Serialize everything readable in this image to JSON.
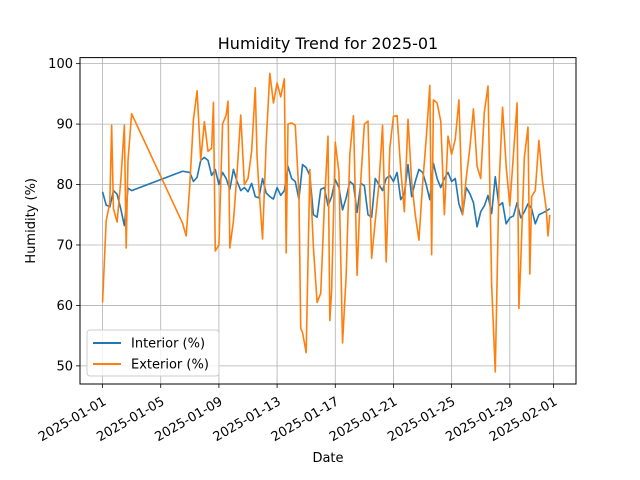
{
  "chart_data": {
    "type": "line",
    "title": "Humidity Trend for 2025-01",
    "xlabel": "Date",
    "ylabel": "Humidity (%)",
    "xlim": [
      "2025-01-01",
      "2025-02-01"
    ],
    "ylim": [
      47,
      101
    ],
    "x_ticks": [
      "2025-01-01",
      "2025-01-05",
      "2025-01-09",
      "2025-01-13",
      "2025-01-17",
      "2025-01-21",
      "2025-01-25",
      "2025-01-29",
      "2025-02-01"
    ],
    "y_ticks": [
      50,
      60,
      70,
      80,
      90,
      100
    ],
    "grid": true,
    "legend_position": "lower-left",
    "series": [
      {
        "name": "Interior (%)",
        "color": "#1f77b4",
        "points": [
          [
            "2025-01-01T00:00",
            78.8
          ],
          [
            "2025-01-01T06:00",
            76.6
          ],
          [
            "2025-01-01T12:00",
            76.3
          ],
          [
            "2025-01-01T18:00",
            79.0
          ],
          [
            "2025-01-02T00:00",
            78.4
          ],
          [
            "2025-01-02T06:00",
            76.0
          ],
          [
            "2025-01-02T12:00",
            73.2
          ],
          [
            "2025-01-02T18:00",
            79.4
          ],
          [
            "2025-01-03T00:00",
            79.0
          ],
          [
            "2025-01-06T12:00",
            82.2
          ],
          [
            "2025-01-07T00:00",
            82.0
          ],
          [
            "2025-01-07T06:00",
            80.5
          ],
          [
            "2025-01-07T12:00",
            81.2
          ],
          [
            "2025-01-07T18:00",
            84.0
          ],
          [
            "2025-01-08T00:00",
            84.5
          ],
          [
            "2025-01-08T06:00",
            84.0
          ],
          [
            "2025-01-08T12:00",
            81.5
          ],
          [
            "2025-01-08T18:00",
            82.5
          ],
          [
            "2025-01-09T00:00",
            80.0
          ],
          [
            "2025-01-09T06:00",
            82.0
          ],
          [
            "2025-01-09T12:00",
            81.0
          ],
          [
            "2025-01-09T18:00",
            79.2
          ],
          [
            "2025-01-10T00:00",
            82.5
          ],
          [
            "2025-01-10T06:00",
            80.5
          ],
          [
            "2025-01-10T12:00",
            79.0
          ],
          [
            "2025-01-10T18:00",
            79.5
          ],
          [
            "2025-01-11T00:00",
            78.8
          ],
          [
            "2025-01-11T06:00",
            80.2
          ],
          [
            "2025-01-11T12:00",
            78.0
          ],
          [
            "2025-01-11T18:00",
            77.8
          ],
          [
            "2025-01-12T00:00",
            81.0
          ],
          [
            "2025-01-12T06:00",
            78.6
          ],
          [
            "2025-01-12T12:00",
            78.0
          ],
          [
            "2025-01-12T18:00",
            77.6
          ],
          [
            "2025-01-13T00:00",
            79.5
          ],
          [
            "2025-01-13T06:00",
            78.2
          ],
          [
            "2025-01-13T12:00",
            79.0
          ],
          [
            "2025-01-13T18:00",
            83.0
          ],
          [
            "2025-01-14T00:00",
            81.0
          ],
          [
            "2025-01-14T06:00",
            80.5
          ],
          [
            "2025-01-14T12:00",
            77.6
          ],
          [
            "2025-01-14T18:00",
            83.3
          ],
          [
            "2025-01-15T00:00",
            82.8
          ],
          [
            "2025-01-15T06:00",
            81.5
          ],
          [
            "2025-01-15T12:00",
            75.0
          ],
          [
            "2025-01-15T18:00",
            74.6
          ],
          [
            "2025-01-16T00:00",
            79.2
          ],
          [
            "2025-01-16T06:00",
            79.5
          ],
          [
            "2025-01-16T12:00",
            76.5
          ],
          [
            "2025-01-16T18:00",
            78.0
          ],
          [
            "2025-01-17T00:00",
            80.8
          ],
          [
            "2025-01-17T06:00",
            79.5
          ],
          [
            "2025-01-17T12:00",
            75.8
          ],
          [
            "2025-01-17T18:00",
            77.8
          ],
          [
            "2025-01-18T00:00",
            80.5
          ],
          [
            "2025-01-18T06:00",
            80.0
          ],
          [
            "2025-01-18T12:00",
            75.4
          ],
          [
            "2025-01-18T18:00",
            80.2
          ],
          [
            "2025-01-19T00:00",
            79.8
          ],
          [
            "2025-01-19T06:00",
            75.0
          ],
          [
            "2025-01-19T12:00",
            74.6
          ],
          [
            "2025-01-19T18:00",
            81.0
          ],
          [
            "2025-01-20T00:00",
            80.0
          ],
          [
            "2025-01-20T06:00",
            79.0
          ],
          [
            "2025-01-20T12:00",
            81.0
          ],
          [
            "2025-01-20T18:00",
            81.5
          ],
          [
            "2025-01-21T00:00",
            80.5
          ],
          [
            "2025-01-21T06:00",
            82.0
          ],
          [
            "2025-01-21T12:00",
            77.5
          ],
          [
            "2025-01-21T18:00",
            78.5
          ],
          [
            "2025-01-22T00:00",
            83.3
          ],
          [
            "2025-01-22T06:00",
            78.0
          ],
          [
            "2025-01-22T12:00",
            80.5
          ],
          [
            "2025-01-22T18:00",
            82.5
          ],
          [
            "2025-01-23T00:00",
            82.0
          ],
          [
            "2025-01-23T06:00",
            80.0
          ],
          [
            "2025-01-23T12:00",
            77.5
          ],
          [
            "2025-01-23T18:00",
            83.5
          ],
          [
            "2025-01-24T00:00",
            81.0
          ],
          [
            "2025-01-24T06:00",
            79.5
          ],
          [
            "2025-01-24T12:00",
            81.0
          ],
          [
            "2025-01-24T18:00",
            82.0
          ],
          [
            "2025-01-25T00:00",
            80.5
          ],
          [
            "2025-01-25T06:00",
            81.0
          ],
          [
            "2025-01-25T12:00",
            76.8
          ],
          [
            "2025-01-25T18:00",
            75.0
          ],
          [
            "2025-01-26T00:00",
            79.5
          ],
          [
            "2025-01-26T06:00",
            78.5
          ],
          [
            "2025-01-26T12:00",
            77.0
          ],
          [
            "2025-01-26T18:00",
            73.0
          ],
          [
            "2025-01-27T00:00",
            75.5
          ],
          [
            "2025-01-27T06:00",
            76.5
          ],
          [
            "2025-01-27T12:00",
            78.2
          ],
          [
            "2025-01-27T18:00",
            75.2
          ],
          [
            "2025-01-28T00:00",
            81.3
          ],
          [
            "2025-01-28T06:00",
            76.5
          ],
          [
            "2025-01-28T12:00",
            77.0
          ],
          [
            "2025-01-28T18:00",
            73.5
          ],
          [
            "2025-01-29T00:00",
            74.5
          ],
          [
            "2025-01-29T06:00",
            74.8
          ],
          [
            "2025-01-29T12:00",
            77.0
          ],
          [
            "2025-01-29T18:00",
            74.5
          ],
          [
            "2025-01-30T00:00",
            75.5
          ],
          [
            "2025-01-30T06:00",
            76.8
          ],
          [
            "2025-01-30T12:00",
            76.0
          ],
          [
            "2025-01-30T18:00",
            73.5
          ],
          [
            "2025-01-31T00:00",
            75.0
          ],
          [
            "2025-01-31T06:00",
            75.3
          ],
          [
            "2025-01-31T12:00",
            75.6
          ],
          [
            "2025-01-31T18:00",
            76.0
          ]
        ]
      },
      {
        "name": "Exterior (%)",
        "color": "#ff7f0e",
        "points": [
          [
            "2025-01-01T00:00",
            60.5
          ],
          [
            "2025-01-01T06:00",
            74.0
          ],
          [
            "2025-01-01T12:00",
            77.0
          ],
          [
            "2025-01-01T15:00",
            89.8
          ],
          [
            "2025-01-01T18:00",
            76.0
          ],
          [
            "2025-01-02T00:00",
            73.8
          ],
          [
            "2025-01-02T06:00",
            80.5
          ],
          [
            "2025-01-02T12:00",
            89.8
          ],
          [
            "2025-01-02T15:00",
            69.5
          ],
          [
            "2025-01-02T18:00",
            84.0
          ],
          [
            "2025-01-03T00:00",
            91.7
          ],
          [
            "2025-01-06T12:00",
            73.6
          ],
          [
            "2025-01-06T18:00",
            71.5
          ],
          [
            "2025-01-07T00:00",
            80.0
          ],
          [
            "2025-01-07T06:00",
            90.8
          ],
          [
            "2025-01-07T12:00",
            95.5
          ],
          [
            "2025-01-07T18:00",
            84.0
          ],
          [
            "2025-01-08T00:00",
            90.4
          ],
          [
            "2025-01-08T06:00",
            85.5
          ],
          [
            "2025-01-08T12:00",
            86.0
          ],
          [
            "2025-01-08T15:00",
            93.6
          ],
          [
            "2025-01-08T18:00",
            69.0
          ],
          [
            "2025-01-09T00:00",
            70.0
          ],
          [
            "2025-01-09T06:00",
            90.0
          ],
          [
            "2025-01-09T12:00",
            91.5
          ],
          [
            "2025-01-09T15:00",
            93.8
          ],
          [
            "2025-01-09T18:00",
            69.5
          ],
          [
            "2025-01-10T00:00",
            74.0
          ],
          [
            "2025-01-10T06:00",
            82.0
          ],
          [
            "2025-01-10T12:00",
            91.5
          ],
          [
            "2025-01-10T18:00",
            80.0
          ],
          [
            "2025-01-11T00:00",
            81.0
          ],
          [
            "2025-01-11T06:00",
            85.5
          ],
          [
            "2025-01-11T12:00",
            96.0
          ],
          [
            "2025-01-11T15:00",
            84.5
          ],
          [
            "2025-01-11T18:00",
            79.5
          ],
          [
            "2025-01-12T00:00",
            71.0
          ],
          [
            "2025-01-12T06:00",
            87.0
          ],
          [
            "2025-01-12T12:00",
            98.4
          ],
          [
            "2025-01-12T18:00",
            93.5
          ],
          [
            "2025-01-13T00:00",
            96.8
          ],
          [
            "2025-01-13T06:00",
            94.5
          ],
          [
            "2025-01-13T12:00",
            97.5
          ],
          [
            "2025-01-13T15:00",
            68.7
          ],
          [
            "2025-01-13T18:00",
            90.0
          ],
          [
            "2025-01-14T00:00",
            90.2
          ],
          [
            "2025-01-14T06:00",
            89.8
          ],
          [
            "2025-01-14T12:00",
            78.5
          ],
          [
            "2025-01-14T15:00",
            56.2
          ],
          [
            "2025-01-14T18:00",
            55.5
          ],
          [
            "2025-01-15T00:00",
            52.2
          ],
          [
            "2025-01-15T06:00",
            82.5
          ],
          [
            "2025-01-15T12:00",
            69.5
          ],
          [
            "2025-01-15T18:00",
            60.5
          ],
          [
            "2025-01-16T00:00",
            62.0
          ],
          [
            "2025-01-16T06:00",
            76.5
          ],
          [
            "2025-01-16T12:00",
            88.0
          ],
          [
            "2025-01-16T15:00",
            57.5
          ],
          [
            "2025-01-16T18:00",
            62.5
          ],
          [
            "2025-01-17T00:00",
            87.0
          ],
          [
            "2025-01-17T06:00",
            82.0
          ],
          [
            "2025-01-17T12:00",
            53.8
          ],
          [
            "2025-01-17T18:00",
            65.0
          ],
          [
            "2025-01-18T00:00",
            85.0
          ],
          [
            "2025-01-18T06:00",
            91.4
          ],
          [
            "2025-01-18T12:00",
            65.0
          ],
          [
            "2025-01-18T18:00",
            80.5
          ],
          [
            "2025-01-19T00:00",
            90.0
          ],
          [
            "2025-01-19T06:00",
            90.5
          ],
          [
            "2025-01-19T12:00",
            67.8
          ],
          [
            "2025-01-19T18:00",
            74.0
          ],
          [
            "2025-01-20T00:00",
            80.0
          ],
          [
            "2025-01-20T06:00",
            89.8
          ],
          [
            "2025-01-20T12:00",
            67.2
          ],
          [
            "2025-01-20T18:00",
            86.0
          ],
          [
            "2025-01-21T00:00",
            91.3
          ],
          [
            "2025-01-21T06:00",
            91.4
          ],
          [
            "2025-01-21T12:00",
            82.5
          ],
          [
            "2025-01-21T18:00",
            75.5
          ],
          [
            "2025-01-22T00:00",
            90.8
          ],
          [
            "2025-01-22T06:00",
            80.5
          ],
          [
            "2025-01-22T12:00",
            75.0
          ],
          [
            "2025-01-22T18:00",
            70.8
          ],
          [
            "2025-01-23T00:00",
            80.0
          ],
          [
            "2025-01-23T06:00",
            87.5
          ],
          [
            "2025-01-23T12:00",
            96.4
          ],
          [
            "2025-01-23T15:00",
            68.4
          ],
          [
            "2025-01-23T18:00",
            94.0
          ],
          [
            "2025-01-24T00:00",
            93.5
          ],
          [
            "2025-01-24T06:00",
            90.5
          ],
          [
            "2025-01-24T12:00",
            75.0
          ],
          [
            "2025-01-24T18:00",
            88.0
          ],
          [
            "2025-01-25T00:00",
            85.0
          ],
          [
            "2025-01-25T06:00",
            87.5
          ],
          [
            "2025-01-25T12:00",
            94.0
          ],
          [
            "2025-01-25T18:00",
            75.0
          ],
          [
            "2025-01-26T00:00",
            81.0
          ],
          [
            "2025-01-26T06:00",
            86.0
          ],
          [
            "2025-01-26T12:00",
            92.5
          ],
          [
            "2025-01-26T18:00",
            83.0
          ],
          [
            "2025-01-27T00:00",
            81.0
          ],
          [
            "2025-01-27T06:00",
            92.0
          ],
          [
            "2025-01-27T12:00",
            96.3
          ],
          [
            "2025-01-27T18:00",
            63.5
          ],
          [
            "2025-01-28T00:00",
            49.0
          ],
          [
            "2025-01-28T06:00",
            79.5
          ],
          [
            "2025-01-28T12:00",
            92.8
          ],
          [
            "2025-01-28T18:00",
            83.0
          ],
          [
            "2025-01-29T00:00",
            76.5
          ],
          [
            "2025-01-29T06:00",
            85.0
          ],
          [
            "2025-01-29T12:00",
            93.5
          ],
          [
            "2025-01-29T15:00",
            59.5
          ],
          [
            "2025-01-29T18:00",
            67.0
          ],
          [
            "2025-01-30T00:00",
            84.5
          ],
          [
            "2025-01-30T06:00",
            89.5
          ],
          [
            "2025-01-30T09:00",
            65.2
          ],
          [
            "2025-01-30T12:00",
            78.0
          ],
          [
            "2025-01-30T18:00",
            79.0
          ],
          [
            "2025-01-31T00:00",
            87.3
          ],
          [
            "2025-01-31T06:00",
            80.5
          ],
          [
            "2025-01-31T12:00",
            76.0
          ],
          [
            "2025-01-31T15:00",
            71.5
          ],
          [
            "2025-01-31T18:00",
            75.0
          ]
        ]
      }
    ]
  }
}
